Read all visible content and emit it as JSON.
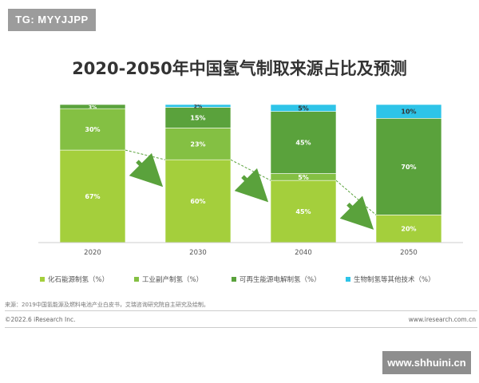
{
  "badge": "TG: MYYJJPP",
  "chart_data": {
    "type": "bar",
    "stacked": true,
    "title": "2020-2050年中国氢气制取来源占比及预测",
    "categories": [
      "2020",
      "2030",
      "2040",
      "2050"
    ],
    "ylim": [
      0,
      100
    ],
    "series": [
      {
        "name": "化石能源制氢（%）",
        "color": "#a4cf3c",
        "values": [
          67,
          60,
          45,
          20
        ],
        "labels": [
          "67%",
          "60%",
          "45%",
          "20%"
        ]
      },
      {
        "name": "工业副产制氢（%）",
        "color": "#84c043",
        "values": [
          30,
          23,
          5,
          0
        ],
        "labels": [
          "30%",
          "23%",
          "5%",
          ""
        ]
      },
      {
        "name": "可再生能源电解制氢（%）",
        "color": "#5aa23c",
        "values": [
          3,
          15,
          45,
          70
        ],
        "labels": [
          "3%",
          "15%",
          "45%",
          "70%"
        ]
      },
      {
        "name": "生物制氢等其他技术（%）",
        "color": "#2ec4e8",
        "values": [
          0,
          2,
          5,
          10
        ],
        "labels": [
          "",
          "2%",
          "5%",
          "10%"
        ]
      }
    ]
  },
  "source": "来源：2019中国氢能源及燃料电池产业白皮书，艾瑞咨询研究院自主研究及绘制。",
  "footer": {
    "left": "©2022.6 iResearch Inc.",
    "right": "www.iresearch.com.cn"
  },
  "watermark": "www.shhuini.cn"
}
